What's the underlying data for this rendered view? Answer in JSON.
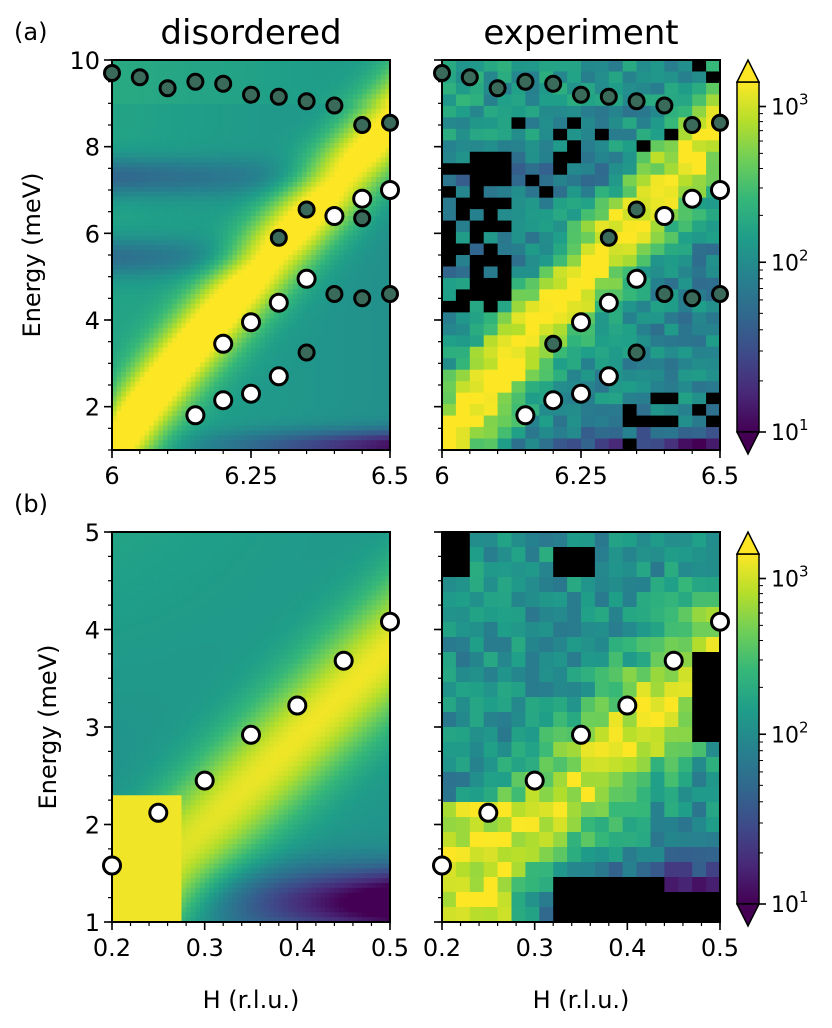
{
  "figure": {
    "col_titles": [
      "disordered",
      "experiment"
    ],
    "panel_labels": [
      "(a)",
      "(b)"
    ]
  },
  "colors": {
    "background": "#ffffff",
    "marker_white": "#ffffff",
    "marker_dark": "#3a6a5a",
    "marker_edge": "#000000",
    "masked": "#000000"
  },
  "colorbar": {
    "label_prefix": "10",
    "exponents": [
      "1",
      "2",
      "3"
    ],
    "stops": [
      "#440154",
      "#482878",
      "#3e4a89",
      "#31688e",
      "#26828e",
      "#1f9e89",
      "#35b779",
      "#6ece58",
      "#b5de2b",
      "#fde725"
    ]
  },
  "chart_data": [
    {
      "type": "heatmap",
      "panel": "a-disordered",
      "xlabel": "",
      "ylabel": "Energy (meV)",
      "xlim": [
        6,
        6.5
      ],
      "ylim": [
        1,
        10
      ],
      "xticks": [
        "6",
        "6.25",
        "6.5"
      ],
      "yticks": [
        "2",
        "4",
        "6",
        "8",
        "10"
      ],
      "white_points": [
        [
          6.15,
          1.8
        ],
        [
          6.2,
          2.15
        ],
        [
          6.25,
          2.3
        ],
        [
          6.3,
          2.7
        ],
        [
          6.2,
          3.45
        ],
        [
          6.25,
          3.95
        ],
        [
          6.3,
          4.4
        ],
        [
          6.35,
          4.95
        ],
        [
          6.4,
          6.4
        ],
        [
          6.45,
          6.8
        ],
        [
          6.5,
          7.0
        ]
      ],
      "dark_points": [
        [
          6.0,
          9.7
        ],
        [
          6.05,
          9.6
        ],
        [
          6.1,
          9.35
        ],
        [
          6.15,
          9.5
        ],
        [
          6.2,
          9.45
        ],
        [
          6.25,
          9.2
        ],
        [
          6.3,
          9.15
        ],
        [
          6.35,
          9.05
        ],
        [
          6.4,
          8.95
        ],
        [
          6.45,
          8.5
        ],
        [
          6.5,
          8.55
        ],
        [
          6.35,
          6.55
        ],
        [
          6.45,
          6.35
        ],
        [
          6.3,
          5.9
        ],
        [
          6.4,
          4.6
        ],
        [
          6.45,
          4.5
        ],
        [
          6.5,
          4.6
        ],
        [
          6.35,
          3.25
        ]
      ]
    },
    {
      "type": "heatmap",
      "panel": "a-experiment",
      "xlim": [
        6,
        6.5
      ],
      "ylim": [
        1,
        10
      ],
      "xticks": [
        "6",
        "6.25",
        "6.5"
      ],
      "white_points": [
        [
          6.15,
          1.8
        ],
        [
          6.2,
          2.15
        ],
        [
          6.25,
          2.3
        ],
        [
          6.3,
          2.7
        ],
        [
          6.25,
          3.95
        ],
        [
          6.3,
          4.4
        ],
        [
          6.35,
          4.95
        ],
        [
          6.4,
          6.4
        ],
        [
          6.45,
          6.8
        ],
        [
          6.5,
          7.0
        ]
      ],
      "dark_points": [
        [
          6.0,
          9.7
        ],
        [
          6.05,
          9.6
        ],
        [
          6.1,
          9.35
        ],
        [
          6.15,
          9.5
        ],
        [
          6.2,
          9.45
        ],
        [
          6.25,
          9.2
        ],
        [
          6.3,
          9.15
        ],
        [
          6.35,
          9.05
        ],
        [
          6.4,
          8.95
        ],
        [
          6.45,
          8.5
        ],
        [
          6.5,
          8.55
        ],
        [
          6.35,
          6.55
        ],
        [
          6.3,
          5.9
        ],
        [
          6.2,
          3.45
        ],
        [
          6.4,
          4.6
        ],
        [
          6.45,
          4.5
        ],
        [
          6.5,
          4.6
        ],
        [
          6.35,
          3.25
        ]
      ]
    },
    {
      "type": "heatmap",
      "panel": "b-disordered",
      "xlabel": "H (r.l.u.)",
      "ylabel": "Energy (meV)",
      "xlim": [
        0.2,
        0.5
      ],
      "ylim": [
        1,
        5
      ],
      "xticks": [
        "0.2",
        "0.3",
        "0.4",
        "0.5"
      ],
      "yticks": [
        "1",
        "2",
        "3",
        "4",
        "5"
      ],
      "white_points": [
        [
          0.2,
          1.58
        ],
        [
          0.25,
          2.12
        ],
        [
          0.3,
          2.45
        ],
        [
          0.35,
          2.92
        ],
        [
          0.4,
          3.22
        ],
        [
          0.45,
          3.68
        ],
        [
          0.5,
          4.08
        ]
      ]
    },
    {
      "type": "heatmap",
      "panel": "b-experiment",
      "xlabel": "H (r.l.u.)",
      "xlim": [
        0.2,
        0.5
      ],
      "ylim": [
        1,
        5
      ],
      "xticks": [
        "0.2",
        "0.3",
        "0.4",
        "0.5"
      ],
      "white_points": [
        [
          0.2,
          1.58
        ],
        [
          0.25,
          2.12
        ],
        [
          0.3,
          2.45
        ],
        [
          0.35,
          2.92
        ],
        [
          0.4,
          3.22
        ],
        [
          0.45,
          3.68
        ],
        [
          0.5,
          4.08
        ]
      ]
    }
  ]
}
